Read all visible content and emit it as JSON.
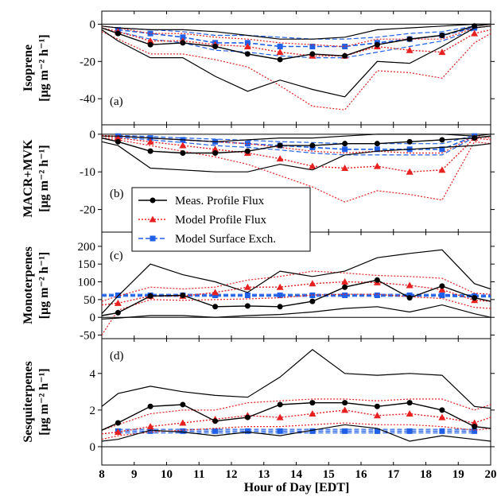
{
  "chart_data": {
    "type": "line",
    "x_label": "Hour of Day [EDT]",
    "x_ticks": [
      8,
      9,
      10,
      11,
      12,
      13,
      14,
      15,
      16,
      17,
      18,
      19,
      20
    ],
    "xlim": [
      8,
      20
    ],
    "legend": {
      "placement": "center-left, across panels (b) and (c)",
      "entries": [
        {
          "label": "Meas. Profile Flux",
          "color": "#000000",
          "marker": "circle",
          "dash": "solid"
        },
        {
          "label": "Model Profile Flux",
          "color": "#e82020",
          "marker": "triangle",
          "dash": "dotted"
        },
        {
          "label": "Model Surface Exch.",
          "color": "#2060e8",
          "marker": "square",
          "dash": "dashed"
        }
      ]
    },
    "panels": [
      {
        "letter": "(a)",
        "ylabel_main": "Isoprene",
        "ylabel_unit": "[μg m⁻² h⁻¹]",
        "ylim": [
          -54,
          7
        ],
        "yticks": [
          0,
          -20,
          -40
        ],
        "zero_line": true,
        "meas": {
          "x": [
            8,
            8.5,
            9.5,
            10.5,
            11.5,
            12.5,
            13.5,
            14.5,
            15.5,
            16.5,
            17.5,
            18.5,
            19.5,
            20
          ],
          "mean": [
            -2,
            -5,
            -11,
            -10,
            -12,
            -16,
            -19,
            -16,
            -17,
            -11,
            -8,
            -6,
            -1,
            0
          ],
          "upper": [
            -1,
            -2,
            -3,
            -3,
            -4,
            -6,
            -8,
            -8,
            -7,
            -3,
            -2,
            -1,
            0,
            0
          ],
          "lower": [
            -3,
            -9,
            -18,
            -18,
            -28,
            -36,
            -30,
            -35,
            -39,
            -20,
            -21,
            -12,
            -2,
            -1
          ]
        },
        "model_profile": {
          "x": [
            8,
            8.5,
            9.5,
            10.5,
            11.5,
            12.5,
            13.5,
            14.5,
            15.5,
            16.5,
            17.5,
            18.5,
            19.5,
            20
          ],
          "mean": [
            -2,
            -4,
            -9,
            -9,
            -11,
            -12,
            -15,
            -17,
            -17,
            -12,
            -14,
            -15,
            -5,
            -3
          ],
          "upper": [
            -1,
            -2,
            -5,
            -5,
            -7,
            -8,
            -10,
            -11,
            -12,
            -8,
            -8,
            -8,
            -2,
            -1
          ],
          "lower": [
            -4,
            -8,
            -16,
            -16,
            -19,
            -23,
            -33,
            -44,
            -46,
            -25,
            -26,
            -29,
            -10,
            -5
          ]
        },
        "model_surface": {
          "x": [
            8.5,
            9.5,
            10.5,
            11.5,
            12.5,
            13.5,
            14.5,
            15.5,
            16.5,
            17.5,
            18.5,
            19.5
          ],
          "mean": [
            -3,
            -5,
            -7,
            -10,
            -10,
            -12,
            -12,
            -12,
            -10,
            -8,
            -6,
            -2
          ],
          "upper": [
            -2,
            -3,
            -4,
            -6,
            -6,
            -7,
            -8,
            -8,
            -7,
            -5,
            -4,
            -1
          ],
          "lower": [
            -4,
            -8,
            -10,
            -14,
            -15,
            -17,
            -18,
            -18,
            -15,
            -12,
            -9,
            -3
          ]
        }
      },
      {
        "letter": "(b)",
        "ylabel_main": "MACR+MVK",
        "ylabel_unit": "[μg m⁻² h⁻¹]",
        "ylim": [
          -26,
          2.5
        ],
        "yticks": [
          0,
          -10,
          -20
        ],
        "zero_line": true,
        "meas": {
          "x": [
            8,
            8.5,
            9.5,
            10.5,
            11.5,
            12.5,
            13.5,
            14.5,
            15.5,
            16.5,
            17.5,
            18.5,
            19.5,
            20
          ],
          "mean": [
            -1,
            -2,
            -4.5,
            -5,
            -5,
            -4.5,
            -3,
            -3,
            -2.5,
            -2.5,
            -2,
            -1.5,
            -1,
            -0.5
          ],
          "upper": [
            -0.5,
            -0.5,
            -1,
            -1.5,
            -2,
            -1.5,
            -1,
            -1,
            -0.5,
            0,
            0,
            0,
            -0.5,
            0
          ],
          "lower": [
            -2,
            -3,
            -9,
            -9.5,
            -10,
            -10,
            -8,
            -9.5,
            -5.5,
            -4.5,
            -4,
            -3.5,
            -3,
            -2.5
          ]
        },
        "model_profile": {
          "x": [
            8,
            8.5,
            9.5,
            10.5,
            11.5,
            12.5,
            13.5,
            14.5,
            15.5,
            16.5,
            17.5,
            18.5,
            19.5,
            20
          ],
          "mean": [
            -0.5,
            -1,
            -2,
            -3,
            -4,
            -5,
            -6.5,
            -8.5,
            -9,
            -8.5,
            -10,
            -9.5,
            -1,
            -1.5
          ],
          "upper": [
            -0.3,
            -0.5,
            -1,
            -1.5,
            -2,
            -2.5,
            -3.5,
            -4.5,
            -5,
            -4.5,
            -5,
            -5,
            -0.5,
            -1
          ],
          "lower": [
            -1,
            -1.5,
            -3,
            -4.5,
            -6,
            -8,
            -11,
            -14,
            -18,
            -15,
            -16,
            -17.5,
            -2,
            -2.5
          ]
        },
        "model_surface": {
          "x": [
            8.5,
            9.5,
            10.5,
            11.5,
            12.5,
            13.5,
            14.5,
            15.5,
            16.5,
            17.5,
            18.5,
            19.5
          ],
          "mean": [
            -0.5,
            -1,
            -1.5,
            -2,
            -2.5,
            -3,
            -3.5,
            -4,
            -4,
            -4,
            -4,
            -0.5
          ],
          "upper": [
            -0.3,
            -0.6,
            -1,
            -1.3,
            -1.6,
            -2,
            -2.2,
            -2.5,
            -2.5,
            -2.5,
            -2.5,
            -0.3
          ],
          "lower": [
            -0.8,
            -1.5,
            -2.2,
            -3,
            -3.5,
            -4.2,
            -5,
            -5.5,
            -5.5,
            -5.5,
            -5.5,
            -0.8
          ]
        }
      },
      {
        "letter": "(c)",
        "ylabel_main": "Monoterpenes",
        "ylabel_unit": "[μg m⁻² h⁻¹]",
        "ylim": [
          -60,
          240
        ],
        "yticks": [
          200,
          150,
          100,
          50,
          0,
          -50
        ],
        "zero_line": true,
        "meas": {
          "x": [
            8,
            8.5,
            9.5,
            10.5,
            11.5,
            12.5,
            13.5,
            14.5,
            15.5,
            16.5,
            17.5,
            18.5,
            19.5,
            20
          ],
          "mean": [
            5,
            13,
            60,
            62,
            30,
            32,
            30,
            45,
            85,
            105,
            55,
            88,
            55,
            45
          ],
          "upper": [
            10,
            60,
            150,
            120,
            100,
            70,
            130,
            115,
            130,
            168,
            180,
            190,
            95,
            80
          ],
          "lower": [
            -5,
            -2,
            5,
            5,
            0,
            5,
            8,
            15,
            25,
            30,
            15,
            35,
            10,
            0
          ]
        },
        "model_profile": {
          "x": [
            8,
            8.5,
            9.5,
            10.5,
            11.5,
            12.5,
            13.5,
            14.5,
            15.5,
            16.5,
            17.5,
            18.5,
            19.5,
            20
          ],
          "mean": [
            35,
            40,
            60,
            60,
            70,
            85,
            85,
            95,
            100,
            98,
            90,
            78,
            48,
            45
          ],
          "upper": [
            45,
            60,
            85,
            80,
            85,
            105,
            115,
            130,
            125,
            118,
            115,
            110,
            68,
            65
          ],
          "lower": [
            -50,
            20,
            50,
            48,
            50,
            52,
            55,
            63,
            65,
            65,
            58,
            53,
            28,
            25
          ]
        },
        "model_surface": {
          "x": [
            8,
            8.5,
            9.5,
            10.5,
            11.5,
            12.5,
            13.5,
            14.5,
            15.5,
            16.5,
            17.5,
            18.5,
            19.5,
            20
          ],
          "mean": [
            62,
            62,
            62,
            62,
            62,
            62,
            62,
            62,
            62,
            62,
            62,
            62,
            60,
            60
          ],
          "upper": [
            65,
            65,
            65,
            65,
            65,
            65,
            65,
            65,
            65,
            65,
            65,
            65,
            63,
            63
          ],
          "lower": [
            59,
            59,
            59,
            59,
            59,
            59,
            59,
            59,
            59,
            59,
            59,
            59,
            57,
            57
          ]
        }
      },
      {
        "letter": "(d)",
        "ylabel_main": "Sesquiterpenes",
        "ylabel_unit": "[μg m⁻² h⁻¹]",
        "ylim": [
          -1,
          5.9
        ],
        "yticks": [
          4,
          2,
          0
        ],
        "zero_line": true,
        "meas": {
          "x": [
            8,
            8.5,
            9.5,
            10.5,
            11.5,
            12.5,
            13.5,
            14.5,
            15.5,
            16.5,
            17.5,
            18.5,
            19.5,
            20
          ],
          "mean": [
            0.9,
            1.3,
            2.2,
            2.3,
            1.4,
            1.6,
            2.3,
            2.4,
            2.4,
            2.2,
            2.4,
            2.0,
            1.1,
            1.0
          ],
          "upper": [
            2.2,
            2.9,
            3.3,
            3.0,
            2.8,
            2.7,
            3.8,
            5.3,
            4.0,
            3.9,
            4.0,
            3.9,
            2.2,
            2.1
          ],
          "lower": [
            0.3,
            0.4,
            0.9,
            0.8,
            0.6,
            0.8,
            0.6,
            0.9,
            1.2,
            1.0,
            0.3,
            0.6,
            0.4,
            0.3
          ]
        },
        "model_profile": {
          "x": [
            8,
            8.5,
            9.5,
            10.5,
            11.5,
            12.5,
            13.5,
            14.5,
            15.5,
            16.5,
            17.5,
            18.5,
            19.5,
            20
          ],
          "mean": [
            0.7,
            0.8,
            1.1,
            1.3,
            1.5,
            1.7,
            1.6,
            1.8,
            2.0,
            1.7,
            1.8,
            1.6,
            1.3,
            1.6
          ],
          "upper": [
            0.9,
            1.2,
            1.8,
            2.0,
            2.0,
            2.4,
            2.5,
            2.6,
            2.6,
            2.5,
            2.6,
            2.6,
            2.0,
            2.3
          ],
          "lower": [
            0.4,
            0.6,
            0.8,
            0.9,
            1.0,
            1.1,
            1.1,
            1.2,
            1.3,
            1.2,
            1.2,
            1.1,
            0.9,
            1.0
          ]
        },
        "model_surface": {
          "x": [
            8.5,
            9.5,
            10.5,
            11.5,
            12.5,
            13.5,
            14.5,
            15.5,
            16.5,
            17.5,
            18.5,
            19.5
          ],
          "mean": [
            0.85,
            0.85,
            0.85,
            0.85,
            0.85,
            0.85,
            0.85,
            0.85,
            0.85,
            0.85,
            0.85,
            0.85
          ],
          "upper": [
            0.95,
            0.95,
            0.95,
            0.95,
            0.95,
            0.95,
            0.95,
            0.95,
            0.95,
            0.95,
            0.95,
            0.95
          ],
          "lower": [
            0.75,
            0.75,
            0.75,
            0.75,
            0.75,
            0.75,
            0.75,
            0.75,
            0.75,
            0.75,
            0.75,
            0.75
          ]
        }
      }
    ]
  }
}
